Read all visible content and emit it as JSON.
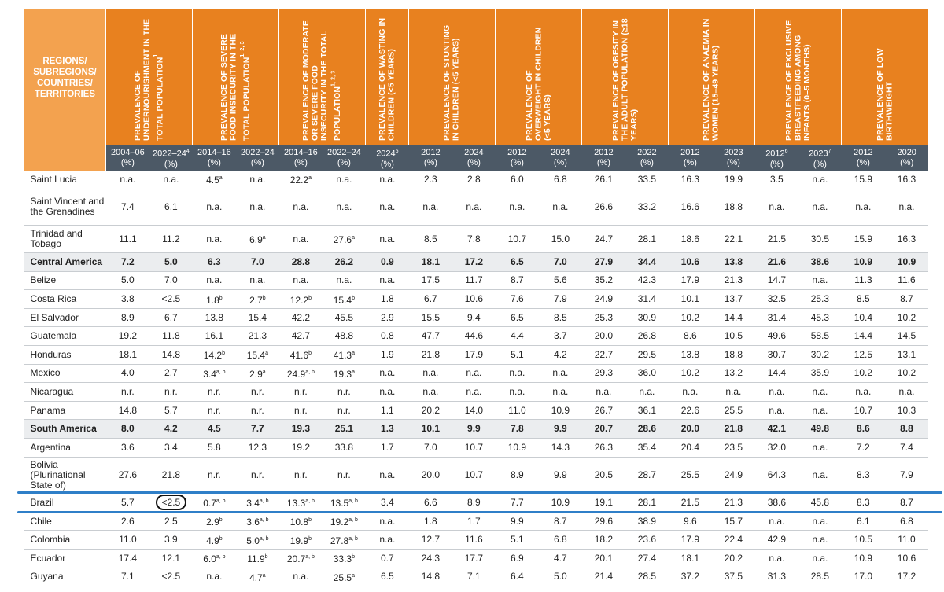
{
  "header": {
    "region_label": "REGIONS/\nSUBREGIONS/\nCOUNTRIES/\nTERRITORIES",
    "indicators": [
      {
        "label": "PREVALENCE OF UNDERNOURISHMENT IN THE TOTAL POPULATION",
        "note": "1",
        "span": 2
      },
      {
        "label": "PREVALENCE OF SEVERE FOOD INSECURITY IN THE TOTAL POPULATION",
        "note": "1, 2, 3",
        "span": 2
      },
      {
        "label": "PREVALENCE OF MODERATE OR SEVERE FOOD INSECURITY IN THE TOTAL POPULATION",
        "note": "1, 2, 3",
        "span": 2
      },
      {
        "label": "PREVALENCE OF WASTING IN CHILDREN (<5 YEARS)",
        "note": "",
        "span": 1
      },
      {
        "label": "PREVALENCE OF STUNTING IN CHILDREN (<5 YEARS)",
        "note": "",
        "span": 2
      },
      {
        "label": "PREVALENCE OF OVERWEIGHT IN CHILDREN (<5 YEARS)",
        "note": "",
        "span": 2
      },
      {
        "label": "PREVALENCE OF OBESITY IN THE ADULT POPULATION (≥18 YEARS)",
        "note": "",
        "span": 2
      },
      {
        "label": "PREVALENCE OF ANAEMIA IN WOMEN (15–49 YEARS)",
        "note": "",
        "span": 2
      },
      {
        "label": "PREVALENCE OF EXCLUSIVE BREASTFEEDING AMONG INFANTS (0–5 MONTHS)",
        "note": "",
        "span": 2
      },
      {
        "label": "PREVALENCE OF LOW BIRTHWEIGHT",
        "note": "",
        "span": 2
      }
    ],
    "years": [
      {
        "y": "2004–06",
        "n": ""
      },
      {
        "y": "2022–24",
        "n": "4"
      },
      {
        "y": "2014–16",
        "n": ""
      },
      {
        "y": "2022–24",
        "n": ""
      },
      {
        "y": "2014–16",
        "n": ""
      },
      {
        "y": "2022–24",
        "n": ""
      },
      {
        "y": "2024",
        "n": "5"
      },
      {
        "y": "2012",
        "n": ""
      },
      {
        "y": "2024",
        "n": ""
      },
      {
        "y": "2012",
        "n": ""
      },
      {
        "y": "2024",
        "n": ""
      },
      {
        "y": "2012",
        "n": ""
      },
      {
        "y": "2022",
        "n": ""
      },
      {
        "y": "2012",
        "n": ""
      },
      {
        "y": "2023",
        "n": ""
      },
      {
        "y": "2012",
        "n": "6"
      },
      {
        "y": "2023",
        "n": "7"
      },
      {
        "y": "2012",
        "n": ""
      },
      {
        "y": "2020",
        "n": ""
      }
    ],
    "unit": "(%)"
  },
  "rows": [
    {
      "name": "Saint Lucia",
      "cells": [
        "n.a.",
        "n.a.",
        "4.5|a",
        "n.a.",
        "22.2|a",
        "n.a.",
        "n.a.",
        "2.3",
        "2.8",
        "6.0",
        "6.8",
        "26.1",
        "33.5",
        "16.3",
        "19.9",
        "3.5",
        "n.a.",
        "15.9",
        "16.3"
      ]
    },
    {
      "name": "Saint Vincent and the Grenadines",
      "tall": true,
      "cells": [
        "7.4",
        "6.1",
        "n.a.",
        "n.a.",
        "n.a.",
        "n.a.",
        "n.a.",
        "n.a.",
        "n.a.",
        "n.a.",
        "n.a.",
        "26.6",
        "33.2",
        "16.6",
        "18.8",
        "n.a.",
        "n.a.",
        "n.a.",
        "n.a."
      ]
    },
    {
      "name": "Trinidad and Tobago",
      "tall2": true,
      "cells": [
        "11.1",
        "11.2",
        "n.a.",
        "6.9|a",
        "n.a.",
        "27.6|a",
        "n.a.",
        "8.5",
        "7.8",
        "10.7",
        "15.0",
        "24.7",
        "28.1",
        "18.6",
        "22.1",
        "21.5",
        "30.5",
        "15.9",
        "16.3"
      ]
    },
    {
      "name": "Central America",
      "bold": true,
      "cells": [
        "7.2",
        "5.0",
        "6.3",
        "7.0",
        "28.8",
        "26.2",
        "0.9",
        "18.1",
        "17.2",
        "6.5",
        "7.0",
        "27.9",
        "34.4",
        "10.6",
        "13.8",
        "21.6",
        "38.6",
        "10.9",
        "10.9"
      ]
    },
    {
      "name": "Belize",
      "cells": [
        "5.0",
        "7.0",
        "n.a.",
        "n.a.",
        "n.a.",
        "n.a.",
        "n.a.",
        "17.5",
        "11.7",
        "8.7",
        "5.6",
        "35.2",
        "42.3",
        "17.9",
        "21.3",
        "14.7",
        "n.a.",
        "11.3",
        "11.6"
      ]
    },
    {
      "name": "Costa Rica",
      "cells": [
        "3.8",
        "<2.5",
        "1.8|b",
        "2.7|b",
        "12.2|b",
        "15.4|b",
        "1.8",
        "6.7",
        "10.6",
        "7.6",
        "7.9",
        "24.9",
        "31.4",
        "10.1",
        "13.7",
        "32.5",
        "25.3",
        "8.5",
        "8.7"
      ]
    },
    {
      "name": "El Salvador",
      "cells": [
        "8.9",
        "6.7",
        "13.8",
        "15.4",
        "42.2",
        "45.5",
        "2.9",
        "15.5",
        "9.4",
        "6.5",
        "8.5",
        "25.3",
        "30.9",
        "10.2",
        "14.4",
        "31.4",
        "45.3",
        "10.4",
        "10.2"
      ]
    },
    {
      "name": "Guatemala",
      "cells": [
        "19.2",
        "11.8",
        "16.1",
        "21.3",
        "42.7",
        "48.8",
        "0.8",
        "47.7",
        "44.6",
        "4.4",
        "3.7",
        "20.0",
        "26.8",
        "8.6",
        "10.5",
        "49.6",
        "58.5",
        "14.4",
        "14.5"
      ]
    },
    {
      "name": "Honduras",
      "cells": [
        "18.1",
        "14.8",
        "14.2|b",
        "15.4|a",
        "41.6|b",
        "41.3|a",
        "1.9",
        "21.8",
        "17.9",
        "5.1",
        "4.2",
        "22.7",
        "29.5",
        "13.8",
        "18.8",
        "30.7",
        "30.2",
        "12.5",
        "13.1"
      ]
    },
    {
      "name": "Mexico",
      "cells": [
        "4.0",
        "2.7",
        "3.4|a, b",
        "2.9|a",
        "24.9|a, b",
        "19.3|a",
        "n.a.",
        "n.a.",
        "n.a.",
        "n.a.",
        "n.a.",
        "29.3",
        "36.0",
        "10.2",
        "13.2",
        "14.4",
        "35.9",
        "10.2",
        "10.2"
      ]
    },
    {
      "name": "Nicaragua",
      "cells": [
        "n.r.",
        "n.r.",
        "n.r.",
        "n.r.",
        "n.r.",
        "n.r.",
        "n.a.",
        "n.a.",
        "n.a.",
        "n.a.",
        "n.a.",
        "n.a.",
        "n.a.",
        "n.a.",
        "n.a.",
        "n.a.",
        "n.a.",
        "n.a.",
        "n.a."
      ]
    },
    {
      "name": "Panama",
      "cells": [
        "14.8",
        "5.7",
        "n.r.",
        "n.r.",
        "n.r.",
        "n.r.",
        "1.1",
        "20.2",
        "14.0",
        "11.0",
        "10.9",
        "26.7",
        "36.1",
        "22.6",
        "25.5",
        "n.a.",
        "n.a.",
        "10.7",
        "10.3"
      ]
    },
    {
      "name": "South America",
      "bold": true,
      "cells": [
        "8.0",
        "4.2",
        "4.5",
        "7.7",
        "19.3",
        "25.1",
        "1.3",
        "10.1",
        "9.9",
        "7.8",
        "9.9",
        "20.7",
        "28.6",
        "20.0",
        "21.8",
        "42.1",
        "49.8",
        "8.6",
        "8.8"
      ]
    },
    {
      "name": "Argentina",
      "cells": [
        "3.6",
        "3.4",
        "5.8",
        "12.3",
        "19.2",
        "33.8",
        "1.7",
        "7.0",
        "10.7",
        "10.9",
        "14.3",
        "26.3",
        "35.4",
        "20.4",
        "23.5",
        "32.0",
        "n.a.",
        "7.2",
        "7.4"
      ]
    },
    {
      "name": "Bolivia (Plurinational State of)",
      "tall": true,
      "cells": [
        "27.6",
        "21.8",
        "n.r.",
        "n.r.",
        "n.r.",
        "n.r.",
        "n.a.",
        "20.0",
        "10.7",
        "8.9",
        "9.9",
        "20.5",
        "28.7",
        "25.5",
        "24.9",
        "64.3",
        "n.a.",
        "8.3",
        "7.9"
      ]
    },
    {
      "name": "Brazil",
      "circle": 1,
      "cells": [
        "5.7",
        "<2.5",
        "0.7|a, b",
        "3.4|a, b",
        "13.3|a, b",
        "13.5|a, b",
        "3.4",
        "6.6",
        "8.9",
        "7.7",
        "10.9",
        "19.1",
        "28.1",
        "21.5",
        "21.3",
        "38.6",
        "45.8",
        "8.3",
        "8.7"
      ]
    },
    {
      "name": "Chile",
      "cells": [
        "2.6",
        "2.5",
        "2.9|b",
        "3.6|a, b",
        "10.8|b",
        "19.2|a, b",
        "n.a.",
        "1.8",
        "1.7",
        "9.9",
        "8.7",
        "29.6",
        "38.9",
        "9.6",
        "15.7",
        "n.a.",
        "n.a.",
        "6.1",
        "6.8"
      ]
    },
    {
      "name": "Colombia",
      "cells": [
        "11.0",
        "3.9",
        "4.9|b",
        "5.0|a, b",
        "19.9|b",
        "27.8|a, b",
        "n.a.",
        "12.7",
        "11.6",
        "5.1",
        "6.8",
        "18.2",
        "23.6",
        "17.9",
        "22.4",
        "42.9",
        "n.a.",
        "10.5",
        "11.0"
      ]
    },
    {
      "name": "Ecuador",
      "cells": [
        "17.4",
        "12.1",
        "6.0|a, b",
        "11.9|b",
        "20.7|a, b",
        "33.3|b",
        "0.7",
        "24.3",
        "17.7",
        "6.9",
        "4.7",
        "20.1",
        "27.4",
        "18.1",
        "20.2",
        "n.a.",
        "n.a.",
        "10.9",
        "10.6"
      ]
    },
    {
      "name": "Guyana",
      "cells": [
        "7.1",
        "<2.5",
        "n.a.",
        "4.7|a",
        "n.a.",
        "25.5|a",
        "6.5",
        "14.8",
        "7.1",
        "6.4",
        "5.0",
        "21.4",
        "28.5",
        "37.2",
        "37.5",
        "31.3",
        "28.5",
        "17.0",
        "17.2"
      ]
    }
  ],
  "highlight": {
    "color": "#2f7fc8",
    "row": "Brazil"
  },
  "colors": {
    "header_orange": "#e8811f",
    "region_orange": "#f3a24f",
    "year_band": "#4c5966",
    "subtotal_bg": "#ebedef"
  }
}
